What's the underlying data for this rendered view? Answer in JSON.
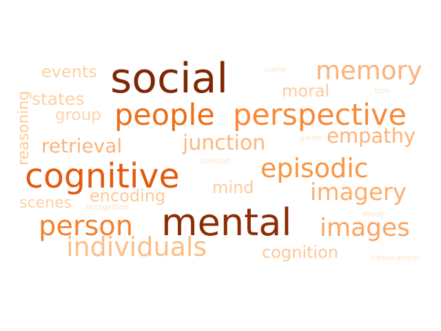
{
  "words": [
    {
      "text": "social",
      "color": "#7f2704"
    },
    {
      "text": "mental",
      "color": "#8c2d04"
    },
    {
      "text": "cognitive",
      "color": "#e3590f"
    },
    {
      "text": "people",
      "color": "#ef6d17"
    },
    {
      "text": "perspective",
      "color": "#f78a3a"
    },
    {
      "text": "person",
      "color": "#f4812c"
    },
    {
      "text": "episodic",
      "color": "#f9953f"
    },
    {
      "text": "memory",
      "color": "#fbb27a"
    },
    {
      "text": "images",
      "color": "#fca45f"
    },
    {
      "text": "individuals",
      "color": "#fdbe85"
    },
    {
      "text": "imagery",
      "color": "#fdae6b"
    },
    {
      "text": "junction",
      "color": "#fdb67a"
    },
    {
      "text": "retrieval",
      "color": "#fdb27a"
    },
    {
      "text": "empathy",
      "color": "#fdb27a"
    },
    {
      "text": "encoding",
      "color": "#fdc896"
    },
    {
      "text": "cognition",
      "color": "#fdc896"
    },
    {
      "text": "events",
      "color": "#fdd0a2"
    },
    {
      "text": "states",
      "color": "#fdd0a2"
    },
    {
      "text": "moral",
      "color": "#fdcb98"
    },
    {
      "text": "group",
      "color": "#fdd4aa"
    },
    {
      "text": "mind",
      "color": "#fdcb98"
    },
    {
      "text": "scenes",
      "color": "#fdd0a2"
    },
    {
      "text": "reasoning",
      "color": "#fdcb98"
    },
    {
      "text": "recognition",
      "color": "#fee0c2"
    },
    {
      "text": "context",
      "color": "#fee3c8"
    },
    {
      "text": "game",
      "color": "#fee3c8"
    },
    {
      "text": "scene",
      "color": "#fee3c8"
    },
    {
      "text": "tom",
      "color": "#fee3c8"
    },
    {
      "text": "mode",
      "color": "#fee3c8"
    },
    {
      "text": "hippocampal",
      "color": "#fee3c8"
    }
  ]
}
